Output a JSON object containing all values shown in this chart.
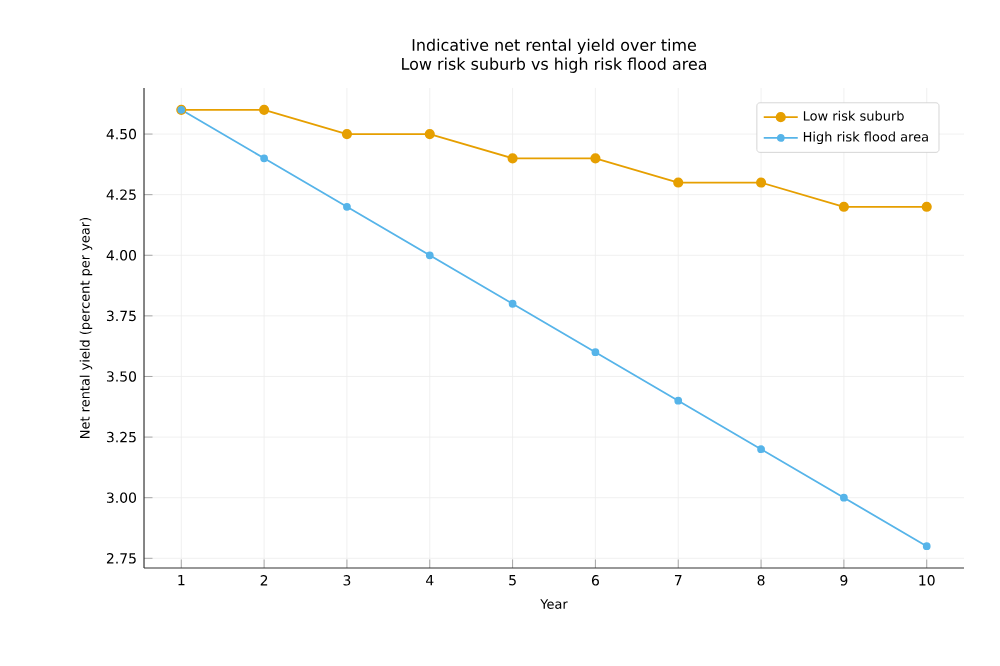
{
  "chart_data": {
    "type": "line",
    "title": "Indicative net rental yield over time",
    "subtitle": "Low risk suburb vs high risk flood area",
    "xlabel": "Year",
    "ylabel": "Net rental yield (percent per year)",
    "x": [
      1,
      2,
      3,
      4,
      5,
      6,
      7,
      8,
      9,
      10
    ],
    "series": [
      {
        "name": "Low risk suburb",
        "color": "#e69f00",
        "values": [
          4.6,
          4.6,
          4.5,
          4.5,
          4.4,
          4.4,
          4.3,
          4.3,
          4.2,
          4.2
        ]
      },
      {
        "name": "High risk flood area",
        "color": "#56b4e9",
        "values": [
          4.6,
          4.4,
          4.2,
          4.0,
          3.8,
          3.6,
          3.4,
          3.2,
          3.0,
          2.8
        ]
      }
    ],
    "xlim": [
      0.55,
      10.45
    ],
    "ylim": [
      2.71,
      4.69
    ],
    "xticks": [
      1,
      2,
      3,
      4,
      5,
      6,
      7,
      8,
      9,
      10
    ],
    "yticks": [
      {
        "value": 2.75,
        "label": "2.75"
      },
      {
        "value": 3.0,
        "label": "3.00"
      },
      {
        "value": 3.25,
        "label": "3.25"
      },
      {
        "value": 3.5,
        "label": "3.50"
      },
      {
        "value": 3.75,
        "label": "3.75"
      },
      {
        "value": 4.0,
        "label": "4.00"
      },
      {
        "value": 4.25,
        "label": "4.25"
      },
      {
        "value": 4.5,
        "label": "4.50"
      }
    ],
    "grid": true,
    "legend": "top right",
    "marker": "circle",
    "line_style": "solid"
  }
}
